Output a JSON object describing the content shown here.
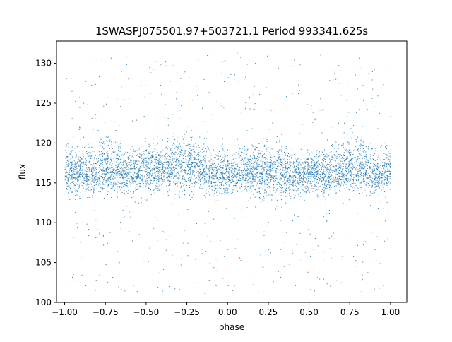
{
  "chart_data": {
    "type": "scatter",
    "title": "1SWASPJ075501.97+503721.1 Period 993341.625s",
    "xlabel": "phase",
    "ylabel": "flux",
    "xlim": [
      -1.05,
      1.1
    ],
    "ylim": [
      100.0,
      132.8
    ],
    "xticks": [
      -1.0,
      -0.75,
      -0.5,
      -0.25,
      0.0,
      0.25,
      0.5,
      0.75,
      1.0
    ],
    "xtick_labels": [
      "−1.00",
      "−0.75",
      "−0.50",
      "−0.25",
      "0.00",
      "0.25",
      "0.50",
      "0.75",
      "1.00"
    ],
    "yticks": [
      100,
      105,
      110,
      115,
      120,
      125,
      130
    ],
    "ytick_labels": [
      "100",
      "105",
      "110",
      "115",
      "120",
      "125",
      "130"
    ],
    "grid": false,
    "legend": "none",
    "marker_color": "#1f77b4",
    "series": [
      {
        "x_range": [
          -1.0,
          1.0
        ],
        "y_range": [
          101.2,
          131.4
        ],
        "band_profile": {
          "phase": [
            -1.0,
            -0.9,
            -0.8,
            -0.75,
            -0.6,
            -0.5,
            -0.4,
            -0.25,
            -0.1,
            0.0,
            0.1,
            0.25,
            0.4,
            0.5,
            0.6,
            0.75,
            0.9,
            1.0
          ],
          "center_flux": [
            116.5,
            116.5,
            116.0,
            117.0,
            116.0,
            116.8,
            116.8,
            117.5,
            116.0,
            116.3,
            116.5,
            116.5,
            116.0,
            116.5,
            116.0,
            117.2,
            116.0,
            116.5
          ],
          "upper_flux": [
            121.0,
            120.5,
            121.5,
            122.0,
            120.5,
            121.0,
            121.5,
            123.0,
            120.5,
            120.5,
            120.5,
            121.5,
            120.5,
            120.0,
            120.0,
            123.0,
            121.0,
            120.5
          ],
          "lower_flux": [
            112.5,
            112.0,
            112.5,
            113.0,
            112.0,
            112.0,
            112.5,
            112.0,
            112.5,
            112.5,
            112.5,
            112.0,
            112.0,
            112.5,
            112.0,
            112.5,
            112.5,
            113.5
          ]
        }
      }
    ]
  }
}
